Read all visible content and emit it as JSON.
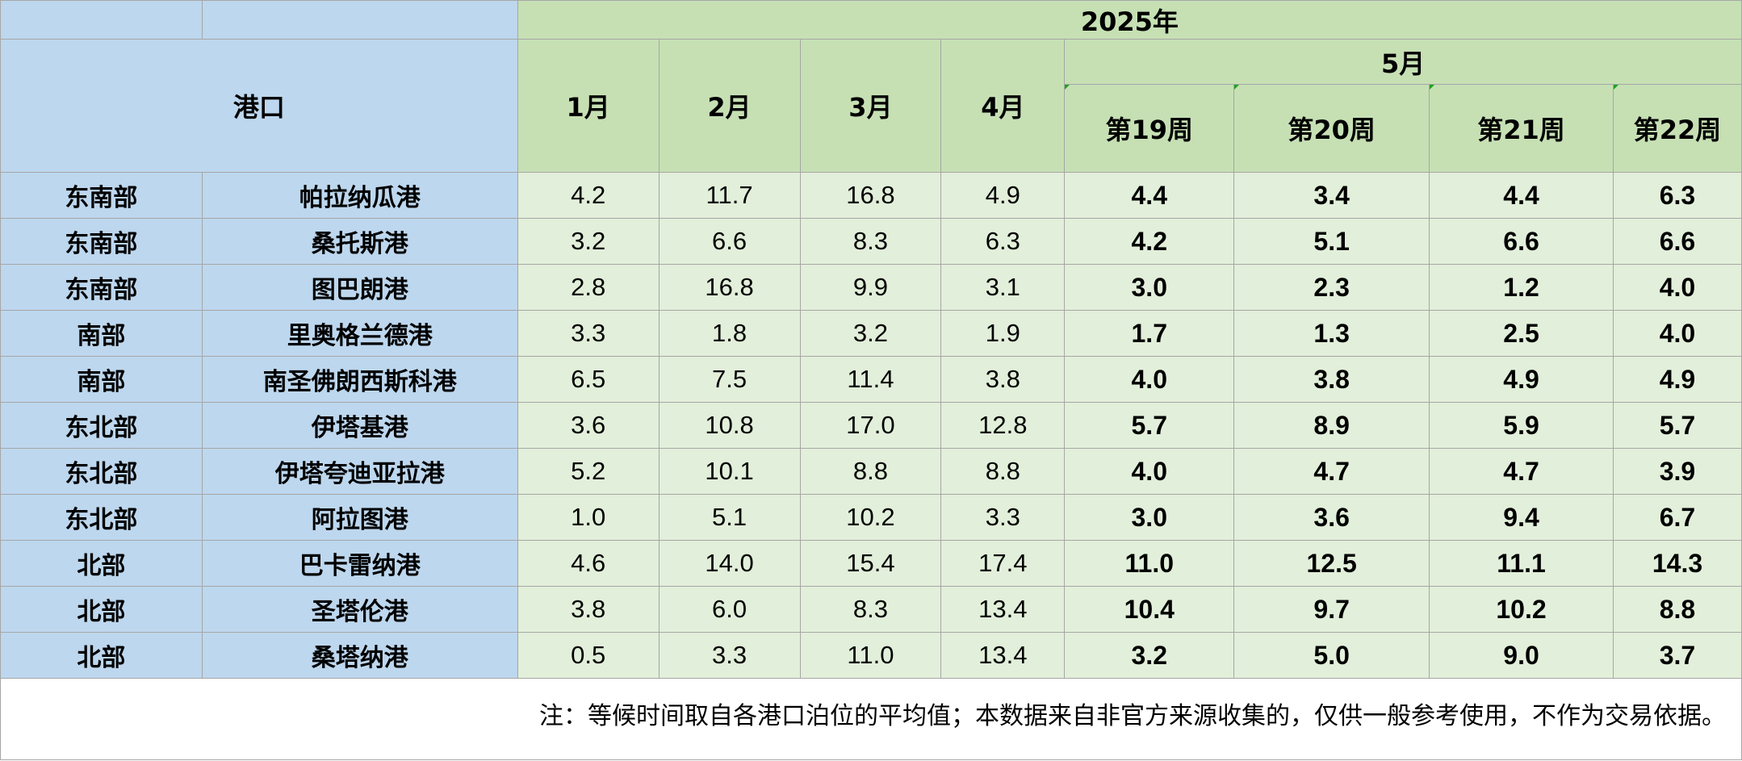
{
  "header": {
    "port_label": "港口",
    "year": "2025年",
    "months": [
      "1月",
      "2月",
      "3月",
      "4月"
    ],
    "may": "5月",
    "weeks": [
      "第19周",
      "第20周",
      "第21周",
      "第22周"
    ]
  },
  "rows": [
    {
      "region": "东南部",
      "port": "帕拉纳瓜港",
      "m1": "4.2",
      "m2": "11.7",
      "m3": "16.8",
      "m4": "4.9",
      "w19": "4.4",
      "w20": "3.4",
      "w21": "4.4",
      "w22": "6.3"
    },
    {
      "region": "东南部",
      "port": "桑托斯港",
      "m1": "3.2",
      "m2": "6.6",
      "m3": "8.3",
      "m4": "6.3",
      "w19": "4.2",
      "w20": "5.1",
      "w21": "6.6",
      "w22": "6.6"
    },
    {
      "region": "东南部",
      "port": "图巴朗港",
      "m1": "2.8",
      "m2": "16.8",
      "m3": "9.9",
      "m4": "3.1",
      "w19": "3.0",
      "w20": "2.3",
      "w21": "1.2",
      "w22": "4.0"
    },
    {
      "region": "南部",
      "port": "里奥格兰德港",
      "m1": "3.3",
      "m2": "1.8",
      "m3": "3.2",
      "m4": "1.9",
      "w19": "1.7",
      "w20": "1.3",
      "w21": "2.5",
      "w22": "4.0"
    },
    {
      "region": "南部",
      "port": "南圣佛朗西斯科港",
      "m1": "6.5",
      "m2": "7.5",
      "m3": "11.4",
      "m4": "3.8",
      "w19": "4.0",
      "w20": "3.8",
      "w21": "4.9",
      "w22": "4.9"
    },
    {
      "region": "东北部",
      "port": "伊塔基港",
      "m1": "3.6",
      "m2": "10.8",
      "m3": "17.0",
      "m4": "12.8",
      "w19": "5.7",
      "w20": "8.9",
      "w21": "5.9",
      "w22": "5.7"
    },
    {
      "region": "东北部",
      "port": "伊塔夸迪亚拉港",
      "m1": "5.2",
      "m2": "10.1",
      "m3": "8.8",
      "m4": "8.8",
      "w19": "4.0",
      "w20": "4.7",
      "w21": "4.7",
      "w22": "3.9"
    },
    {
      "region": "东北部",
      "port": "阿拉图港",
      "m1": "1.0",
      "m2": "5.1",
      "m3": "10.2",
      "m4": "3.3",
      "w19": "3.0",
      "w20": "3.6",
      "w21": "9.4",
      "w22": "6.7"
    },
    {
      "region": "北部",
      "port": "巴卡雷纳港",
      "m1": "4.6",
      "m2": "14.0",
      "m3": "15.4",
      "m4": "17.4",
      "w19": "11.0",
      "w20": "12.5",
      "w21": "11.1",
      "w22": "14.3"
    },
    {
      "region": "北部",
      "port": "圣塔伦港",
      "m1": "3.8",
      "m2": "6.0",
      "m3": "8.3",
      "m4": "13.4",
      "w19": "10.4",
      "w20": "9.7",
      "w21": "10.2",
      "w22": "8.8"
    },
    {
      "region": "北部",
      "port": "桑塔纳港",
      "m1": "0.5",
      "m2": "3.3",
      "m3": "11.0",
      "m4": "13.4",
      "w19": "3.2",
      "w20": "5.0",
      "w21": "9.0",
      "w22": "3.7"
    }
  ],
  "note": "注：等候时间取自各港口泊位的平均值；本数据来自非官方来源收集的，仅供一般参考使用，不作为交易依据。"
}
